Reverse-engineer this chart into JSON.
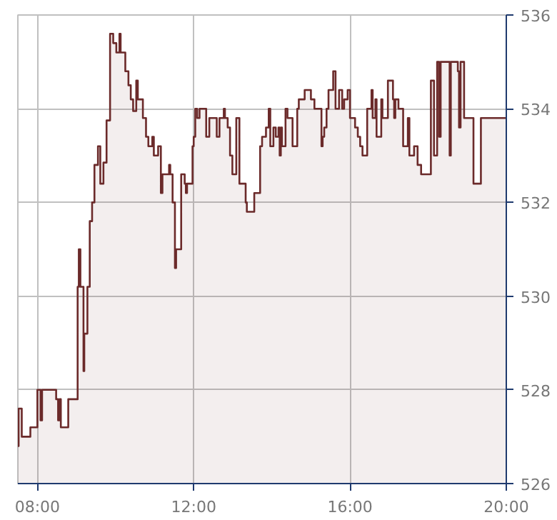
{
  "chart_data": {
    "type": "area",
    "color": "#6b2a2a",
    "grid": true,
    "x": [
      7.5,
      7.52,
      7.52,
      7.6,
      7.6,
      7.82,
      7.82,
      8.0,
      8.0,
      8.08,
      8.08,
      8.12,
      8.12,
      8.48,
      8.48,
      8.53,
      8.53,
      8.57,
      8.57,
      8.6,
      8.6,
      8.79,
      8.79,
      9.03,
      9.03,
      9.06,
      9.06,
      9.1,
      9.1,
      9.18,
      9.18,
      9.2,
      9.2,
      9.28,
      9.28,
      9.34,
      9.34,
      9.4,
      9.4,
      9.46,
      9.46,
      9.55,
      9.55,
      9.61,
      9.61,
      9.69,
      9.69,
      9.77,
      9.77,
      9.86,
      9.86,
      9.94,
      9.94,
      10.02,
      10.02,
      10.1,
      10.1,
      10.13,
      10.13,
      10.25,
      10.25,
      10.33,
      10.33,
      10.39,
      10.39,
      10.45,
      10.45,
      10.53,
      10.53,
      10.57,
      10.57,
      10.7,
      10.7,
      10.78,
      10.78,
      10.84,
      10.84,
      10.94,
      10.94,
      10.98,
      10.98,
      11.09,
      11.09,
      11.16,
      11.16,
      11.2,
      11.2,
      11.37,
      11.37,
      11.4,
      11.4,
      11.46,
      11.46,
      11.52,
      11.52,
      11.55,
      11.55,
      11.68,
      11.68,
      11.77,
      11.77,
      11.8,
      11.8,
      11.83,
      11.83,
      11.97,
      11.97,
      12.0,
      12.0,
      12.04,
      12.04,
      12.09,
      12.09,
      12.15,
      12.15,
      12.32,
      12.32,
      12.4,
      12.4,
      12.59,
      12.59,
      12.66,
      12.66,
      12.77,
      12.77,
      12.8,
      12.8,
      12.87,
      12.87,
      12.93,
      12.93,
      12.99,
      12.99,
      13.09,
      13.09,
      13.17,
      13.17,
      13.33,
      13.33,
      13.36,
      13.36,
      13.55,
      13.55,
      13.7,
      13.7,
      13.75,
      13.75,
      13.85,
      13.85,
      13.92,
      13.92,
      13.96,
      13.96,
      14.04,
      14.04,
      14.1,
      14.1,
      14.17,
      14.17,
      14.2,
      14.2,
      14.23,
      14.23,
      14.26,
      14.26,
      14.35,
      14.35,
      14.4,
      14.4,
      14.53,
      14.53,
      14.65,
      14.65,
      14.69,
      14.69,
      14.84,
      14.84,
      15.0,
      15.0,
      15.09,
      15.09,
      15.27,
      15.27,
      15.3,
      15.3,
      15.34,
      15.34,
      15.4,
      15.4,
      15.45,
      15.45,
      15.57,
      15.57,
      15.63,
      15.63,
      15.72,
      15.72,
      15.8,
      15.8,
      15.85,
      15.85,
      15.94,
      15.94,
      16.0,
      16.0,
      16.13,
      16.13,
      16.2,
      16.2,
      16.26,
      16.26,
      16.32,
      16.32,
      16.44,
      16.44,
      16.55,
      16.55,
      16.58,
      16.58,
      16.65,
      16.65,
      16.68,
      16.68,
      16.8,
      16.8,
      16.83,
      16.83,
      16.97,
      16.97,
      17.1,
      17.1,
      17.13,
      17.13,
      17.16,
      17.16,
      17.24,
      17.24,
      17.36,
      17.36,
      17.48,
      17.48,
      17.52,
      17.52,
      17.64,
      17.64,
      17.73,
      17.73,
      17.82,
      17.82,
      18.07,
      18.07,
      18.15,
      18.15,
      18.23,
      18.23,
      18.28,
      18.28,
      18.32,
      18.32,
      18.55,
      18.55,
      18.58,
      18.58,
      18.76,
      18.76,
      18.79,
      18.79,
      18.83,
      18.83,
      18.92,
      18.92,
      19.16,
      19.16,
      19.35,
      19.35,
      20.0
    ],
    "values": [
      526.8,
      526.8,
      527.6,
      527.6,
      527.0,
      527.0,
      527.2,
      527.2,
      528.0,
      528.0,
      527.35,
      527.35,
      528.0,
      528.0,
      527.8,
      527.8,
      527.35,
      527.35,
      527.8,
      527.8,
      527.2,
      527.2,
      527.8,
      527.8,
      530.2,
      530.2,
      531.0,
      531.0,
      530.2,
      530.2,
      528.4,
      528.4,
      529.2,
      529.2,
      530.2,
      530.2,
      531.6,
      531.6,
      532.0,
      532.0,
      532.8,
      532.8,
      533.2,
      533.2,
      532.4,
      532.4,
      532.85,
      532.85,
      533.75,
      533.75,
      535.6,
      535.6,
      535.4,
      535.4,
      535.2,
      535.2,
      535.6,
      535.6,
      535.2,
      535.2,
      534.8,
      534.8,
      534.5,
      534.5,
      534.2,
      534.2,
      533.95,
      533.95,
      534.6,
      534.6,
      534.2,
      534.2,
      533.8,
      533.8,
      533.4,
      533.4,
      533.2,
      533.2,
      533.4,
      533.4,
      533.0,
      533.0,
      533.2,
      533.2,
      532.2,
      532.2,
      532.6,
      532.6,
      532.8,
      532.8,
      532.6,
      532.6,
      532.0,
      532.0,
      530.6,
      530.6,
      531.0,
      531.0,
      532.6,
      532.6,
      532.4,
      532.4,
      532.2,
      532.2,
      532.4,
      532.4,
      533.2,
      533.2,
      533.4,
      533.4,
      534.0,
      534.0,
      533.8,
      533.8,
      534.0,
      534.0,
      533.4,
      533.4,
      533.8,
      533.8,
      533.4,
      533.4,
      533.8,
      533.8,
      534.0,
      534.0,
      533.8,
      533.8,
      533.6,
      533.6,
      533.0,
      533.0,
      532.6,
      532.6,
      533.8,
      533.8,
      532.4,
      532.4,
      532.0,
      532.0,
      531.8,
      531.8,
      532.2,
      532.2,
      533.2,
      533.2,
      533.4,
      533.4,
      533.6,
      533.6,
      534.0,
      534.0,
      533.2,
      533.2,
      533.6,
      533.6,
      533.4,
      533.4,
      533.6,
      533.6,
      533.0,
      533.0,
      533.6,
      533.6,
      533.2,
      533.2,
      534.0,
      534.0,
      533.8,
      533.8,
      533.2,
      533.2,
      534.0,
      534.0,
      534.2,
      534.2,
      534.4,
      534.4,
      534.2,
      534.2,
      534.0,
      534.0,
      533.2,
      533.2,
      533.4,
      533.4,
      533.6,
      533.6,
      534.0,
      534.0,
      534.4,
      534.4,
      534.8,
      534.8,
      534.0,
      534.0,
      534.4,
      534.4,
      534.0,
      534.0,
      534.2,
      534.2,
      534.4,
      534.4,
      533.8,
      533.8,
      533.6,
      533.6,
      533.4,
      533.4,
      533.2,
      533.2,
      533.0,
      533.0,
      534.0,
      534.0,
      534.4,
      534.4,
      533.8,
      533.8,
      534.2,
      534.2,
      533.4,
      533.4,
      534.2,
      534.2,
      533.8,
      533.8,
      534.6,
      534.6,
      534.2,
      534.2,
      533.8,
      533.8,
      534.2,
      534.2,
      534.0,
      534.0,
      533.2,
      533.2,
      533.8,
      533.8,
      533.0,
      533.0,
      533.2,
      533.2,
      532.8,
      532.8,
      532.6,
      532.6,
      534.6,
      534.6,
      533.0,
      533.0,
      535.0,
      535.0,
      533.4,
      533.4,
      535.0,
      535.0,
      533.0,
      533.0,
      535.0,
      535.0,
      534.8,
      534.8,
      533.6,
      533.6,
      535.0,
      535.0,
      533.8,
      533.8,
      532.4,
      532.4,
      533.8,
      533.8
    ],
    "xlim": [
      7.5,
      20
    ],
    "ylim": [
      526,
      536
    ],
    "xticks": [
      {
        "value": 8,
        "label": "08:00"
      },
      {
        "value": 12,
        "label": "12:00"
      },
      {
        "value": 16,
        "label": "16:00"
      },
      {
        "value": 20,
        "label": "20:00"
      }
    ],
    "yticks": [
      526,
      528,
      530,
      532,
      534,
      536
    ]
  }
}
